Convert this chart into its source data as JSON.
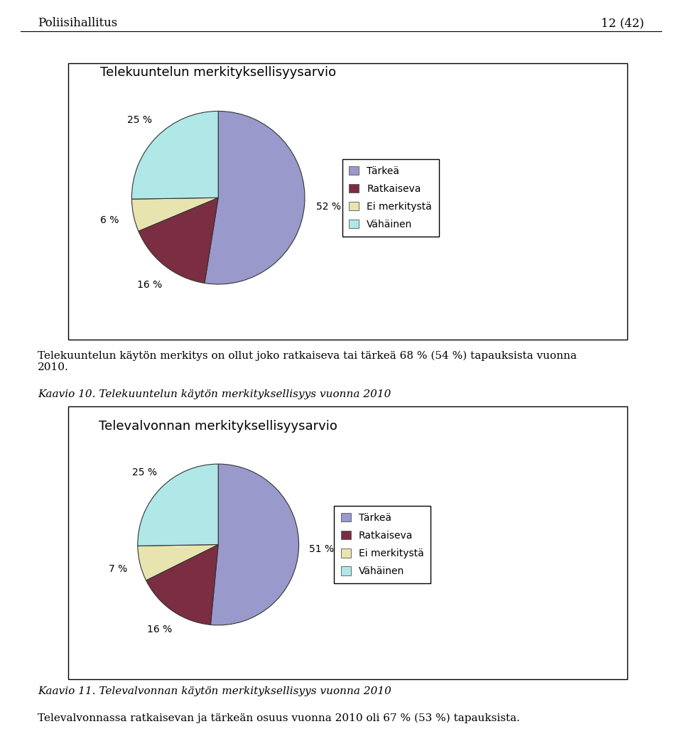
{
  "chart1": {
    "title": "Telekuuntelun merkityksellisyysarvio",
    "values": [
      52,
      16,
      6,
      25
    ],
    "pct_labels": [
      "52 %",
      "16 %",
      "6 %",
      "25 %"
    ],
    "colors": [
      "#9999cc",
      "#7b2d42",
      "#e8e4b0",
      "#b0e8e8"
    ],
    "legend_labels": [
      "Tärkeä",
      "Ratkaiseva",
      "Ei merkitystä",
      "Vähäinen"
    ],
    "startangle": 90
  },
  "chart2": {
    "title": "Televalvonnan merkityksellisyysarvio",
    "values": [
      51,
      16,
      7,
      25
    ],
    "pct_labels": [
      "51 %",
      "16 %",
      "7 %",
      "25 %"
    ],
    "colors": [
      "#9999cc",
      "#7b2d42",
      "#e8e4b0",
      "#b0e8e8"
    ],
    "legend_labels": [
      "Tärkeä",
      "Ratkaiseva",
      "Ei merkitystä",
      "Vähäinen"
    ],
    "startangle": 90
  },
  "header_left": "Poliisihallitus",
  "header_right": "12 (42)",
  "caption1": "Kaavio 10. Telekuuntelun käytön merkityksellisyys vuonna 2010",
  "body1": "Telekuuntelun käytön merkitys on ollut joko ratkaiseva tai tärkeä 68 % (54 %) tapauksista vuonna\n2010.",
  "caption2": "Kaavio 11. Televalvonnan käytön merkityksellisyys vuonna 2010",
  "body2": "Televalvonnassa ratkaisevan ja tärkeän osuus vuonna 2010 oli 67 % (53 %) tapauksista.",
  "bg_color": "#ffffff"
}
